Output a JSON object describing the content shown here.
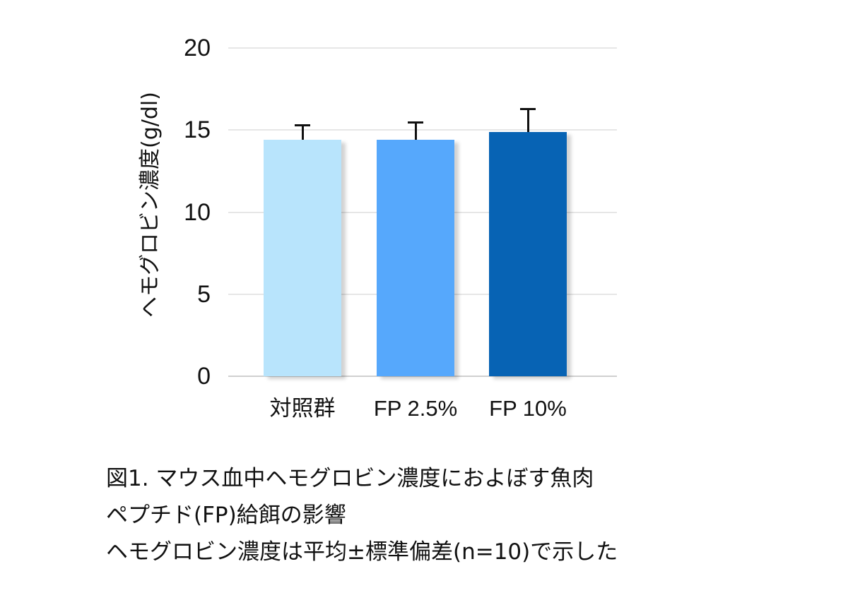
{
  "chart_data": {
    "type": "bar",
    "title": "",
    "xlabel": "",
    "ylabel": "ヘモグロビン濃度(g/dl)",
    "ylim": [
      0,
      20
    ],
    "yticks": [
      0,
      5,
      10,
      15,
      20
    ],
    "grid": true,
    "legend": null,
    "categories": [
      "対照群",
      "FP 2.5%",
      "FP 10%"
    ],
    "values": [
      14.4,
      14.4,
      14.9
    ],
    "error_sd": [
      0.9,
      1.1,
      1.4
    ],
    "colors": [
      "#B8E4FC",
      "#56A8FC",
      "#0763B4"
    ]
  },
  "axis": {
    "y_label": "ヘモグロビン濃度(g/dl)",
    "ticks": [
      "0",
      "5",
      "10",
      "15",
      "20"
    ]
  },
  "bars": [
    {
      "label": "対照群",
      "color": "#B8E4FC"
    },
    {
      "label": "FP 2.5%",
      "color": "#56A8FC"
    },
    {
      "label": "FP 10%",
      "color": "#0763B4"
    }
  ],
  "caption": {
    "line1": "図1. マウス血中ヘモグロビン濃度におよぼす魚肉",
    "line2": "ペプチド(FP)給餌の影響",
    "line3": "ヘモグロビン濃度は平均±標準偏差(n=10)で示した"
  }
}
